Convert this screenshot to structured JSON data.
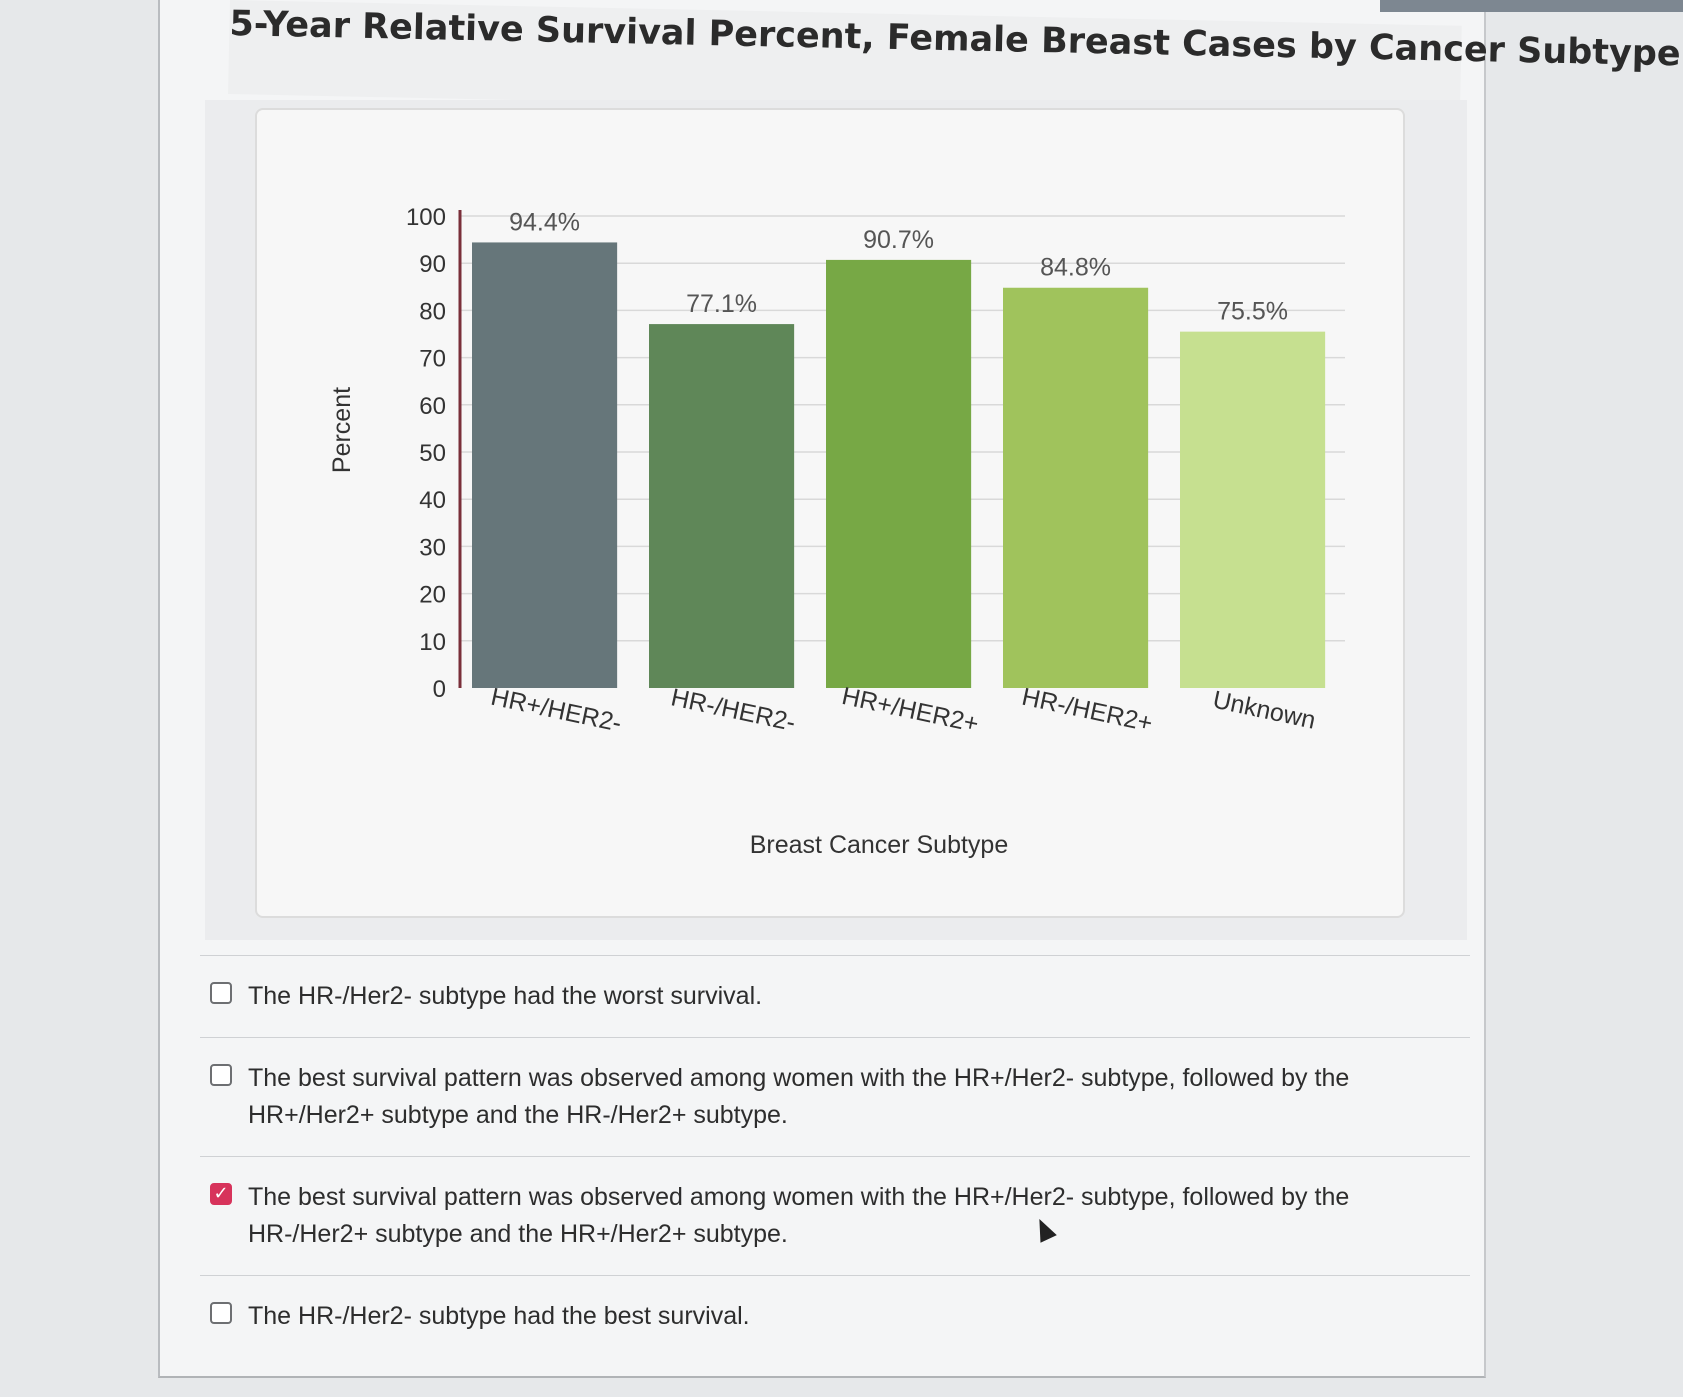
{
  "question": {
    "title": "5-Year Relative Survival Percent, Female Breast Cases by Cancer Subtype"
  },
  "chart_data": {
    "type": "bar",
    "title": "",
    "xlabel": "Breast Cancer Subtype",
    "ylabel": "Percent",
    "ylim": [
      0,
      100
    ],
    "yticks": [
      0,
      10,
      20,
      30,
      40,
      50,
      60,
      70,
      80,
      90,
      100
    ],
    "categories": [
      "HR+/HER2-",
      "HR-/HER2-",
      "HR+/HER2+",
      "HR-/HER2+",
      "Unknown"
    ],
    "values": [
      94.4,
      77.1,
      90.7,
      84.8,
      75.5
    ],
    "data_labels": [
      "94.4%",
      "77.1%",
      "90.7%",
      "84.8%",
      "75.5%"
    ],
    "bar_colors": [
      "#66767a",
      "#5f8758",
      "#77a845",
      "#a0c35c",
      "#c6e090"
    ],
    "grid": true
  },
  "options": [
    {
      "label": "The HR-/Her2- subtype had the worst survival.",
      "checked": false
    },
    {
      "label": "The best survival pattern was observed among women with the HR+/Her2- subtype, followed by the HR+/Her2+ subtype and the HR-/Her2+ subtype.",
      "checked": false
    },
    {
      "label": "The best survival pattern was observed among women with the HR+/Her2- subtype, followed by the HR-/Her2+ subtype and the HR+/Her2+ subtype.",
      "checked": true
    },
    {
      "label": "The HR-/Her2- subtype had the best survival.",
      "checked": false
    }
  ],
  "icons": {
    "checked_mark": "check-icon",
    "cursor": "mouse-pointer-icon"
  },
  "colors": {
    "checkbox_checked": "#d7335b"
  }
}
